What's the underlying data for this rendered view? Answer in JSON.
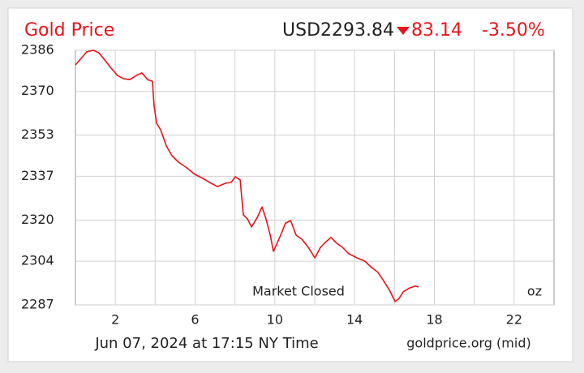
{
  "chart_data": {
    "type": "line",
    "title": "Gold Price",
    "price": "USD2293.84",
    "change": "83.14",
    "change_percent": "-3.50%",
    "annotations": [
      "Market Closed",
      "oz"
    ],
    "footer_left": "Jun 07, 2024 at 17:15 NY Time",
    "footer_right": "goldprice.org (mid)",
    "x": [
      0,
      0.28,
      0.57,
      0.9,
      1.18,
      1.5,
      1.83,
      2.11,
      2.4,
      2.73,
      3.05,
      3.33,
      3.62,
      3.86,
      3.94,
      4.07,
      4.27,
      4.56,
      4.84,
      5.17,
      5.58,
      5.98,
      6.39,
      6.8,
      7.12,
      7.53,
      7.81,
      8.02,
      8.26,
      8.42,
      8.63,
      8.83,
      9.12,
      9.36,
      9.56,
      9.77,
      9.93,
      10.26,
      10.54,
      10.79,
      11.07,
      11.36,
      11.68,
      12.01,
      12.29,
      12.57,
      12.82,
      13.1,
      13.39,
      13.71,
      14.12,
      14.52,
      14.85,
      15.14,
      15.42,
      15.75,
      16.03,
      16.23,
      16.44,
      16.76,
      17.05,
      17.21
    ],
    "series": [
      {
        "color": "#e8141b",
        "values": [
          2380.3,
          2382.8,
          2385.4,
          2386,
          2385,
          2381.9,
          2378.7,
          2376.2,
          2375,
          2374.6,
          2376.2,
          2377.2,
          2374.6,
          2374,
          2364.6,
          2357.6,
          2355.1,
          2348.8,
          2345,
          2342.5,
          2340.3,
          2337.8,
          2336.2,
          2334.3,
          2333,
          2334.3,
          2334.6,
          2336.8,
          2335.6,
          2322,
          2320.4,
          2317.3,
          2321,
          2325.1,
          2320.4,
          2314.1,
          2307.8,
          2313.5,
          2318.8,
          2319.8,
          2314.1,
          2312.5,
          2309.4,
          2305.3,
          2309.4,
          2311.6,
          2313.2,
          2311,
          2309.4,
          2306.9,
          2305.3,
          2304,
          2301.5,
          2299.9,
          2296.8,
          2292.7,
          2288.3,
          2289.5,
          2292.1,
          2293.6,
          2294.3,
          2294
        ]
      }
    ],
    "xlim": [
      0,
      24
    ],
    "xticks": [
      2,
      6,
      10,
      14,
      18,
      22
    ],
    "xgrid": [
      2,
      4,
      6,
      8,
      10,
      12,
      14,
      16,
      18,
      20,
      22
    ],
    "ylim": [
      2287,
      2386
    ],
    "yticks": [
      2287,
      2304,
      2320,
      2337,
      2353,
      2370,
      2386
    ],
    "grid": true
  }
}
